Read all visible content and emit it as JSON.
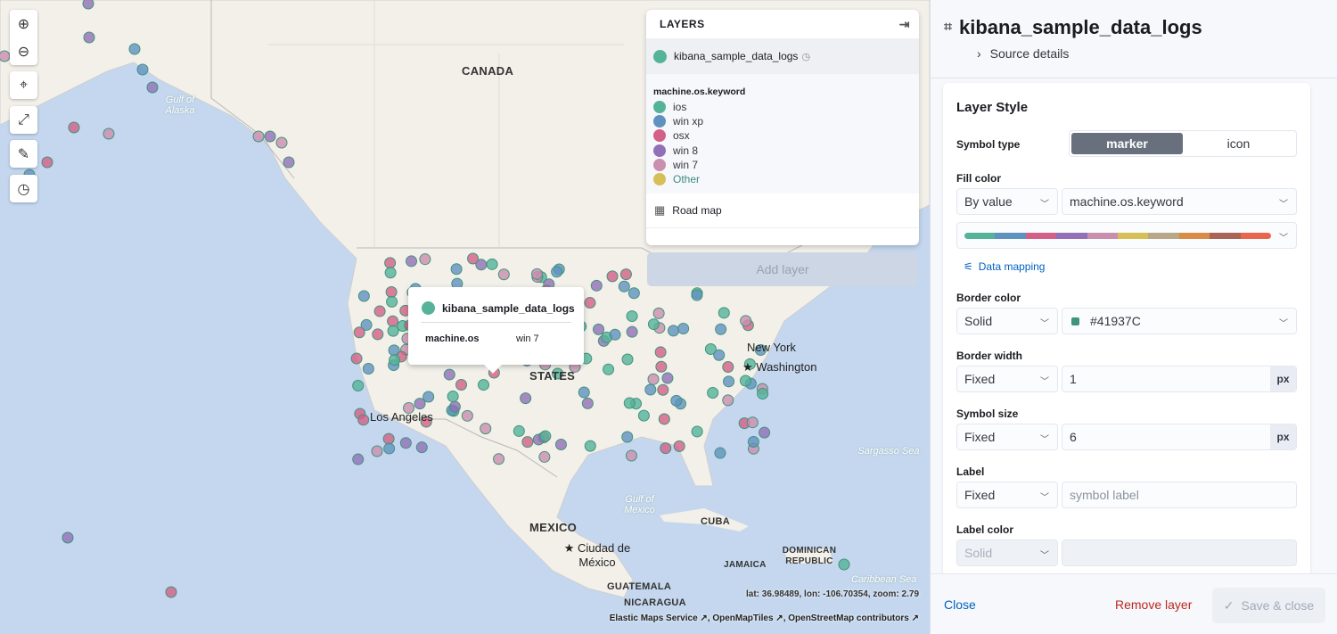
{
  "map": {
    "labels": {
      "canada": "CANADA",
      "mexico": "MEXICO",
      "cuba": "CUBA",
      "guatemala": "GUATEMALA",
      "nicaragua": "NICARAGUA",
      "jamaica": "JAMAICA",
      "dominican": "DOMINICAN REPUBLIC",
      "states": "STATES",
      "gulf_alaska": "Gulf of Alaska",
      "gulf_mexico": "Gulf of Mexico",
      "sargasso": "Sargasso Sea",
      "caribbean": "Caribbean Sea",
      "la": "Los Angeles",
      "ny": "New York",
      "dc": "Washington",
      "mxcity": "Ciudad de México"
    },
    "coords": "lat: 36.98489, lon: -106.70354, zoom: 2.79",
    "attribution": [
      "Elastic Maps Service",
      "OpenMapTiles",
      "OpenStreetMap contributors"
    ],
    "tools": [
      "plus-icon",
      "minus-icon",
      "crosshair-icon",
      "expand-icon",
      "tools-icon",
      "timeslider-icon"
    ]
  },
  "layers_panel": {
    "title": "LAYERS",
    "layer": {
      "name": "kibana_sample_data_logs",
      "color": "#54B399"
    },
    "legend": {
      "field": "machine.os.keyword",
      "items": [
        {
          "label": "ios",
          "color": "#54B399"
        },
        {
          "label": "win xp",
          "color": "#6092C0"
        },
        {
          "label": "osx",
          "color": "#D36086"
        },
        {
          "label": "win 8",
          "color": "#9170B8"
        },
        {
          "label": "win 7",
          "color": "#CA8EAE"
        },
        {
          "label": "Other",
          "color": "#D6BF57"
        }
      ]
    },
    "basemap": "Road map",
    "add_layer": "Add layer"
  },
  "tooltip": {
    "layer": "kibana_sample_data_logs",
    "field": "machine.os",
    "value": "win 7"
  },
  "editor": {
    "title": "kibana_sample_data_logs",
    "source_details": "Source details",
    "section": "Layer Style",
    "symbol_type": {
      "label": "Symbol type",
      "options": [
        "marker",
        "icon"
      ],
      "selected": "marker"
    },
    "fill_color": {
      "label": "Fill color",
      "mode": "By value",
      "field": "machine.os.keyword",
      "palette": [
        "#54B399",
        "#6092C0",
        "#D36086",
        "#9170B8",
        "#CA8EAE",
        "#D6BF57",
        "#B9A888",
        "#DA8B45",
        "#AA6556",
        "#E7664C"
      ],
      "data_mapping": "Data mapping"
    },
    "border_color": {
      "label": "Border color",
      "mode": "Solid",
      "value": "#41937C"
    },
    "border_width": {
      "label": "Border width",
      "mode": "Fixed",
      "value": "1",
      "unit": "px"
    },
    "symbol_size": {
      "label": "Symbol size",
      "mode": "Fixed",
      "value": "6",
      "unit": "px"
    },
    "label": {
      "label": "Label",
      "mode": "Fixed",
      "placeholder": "symbol label"
    },
    "label_color": {
      "label": "Label color",
      "mode": "Solid"
    }
  },
  "footer": {
    "close": "Close",
    "remove": "Remove layer",
    "save": "Save & close"
  }
}
